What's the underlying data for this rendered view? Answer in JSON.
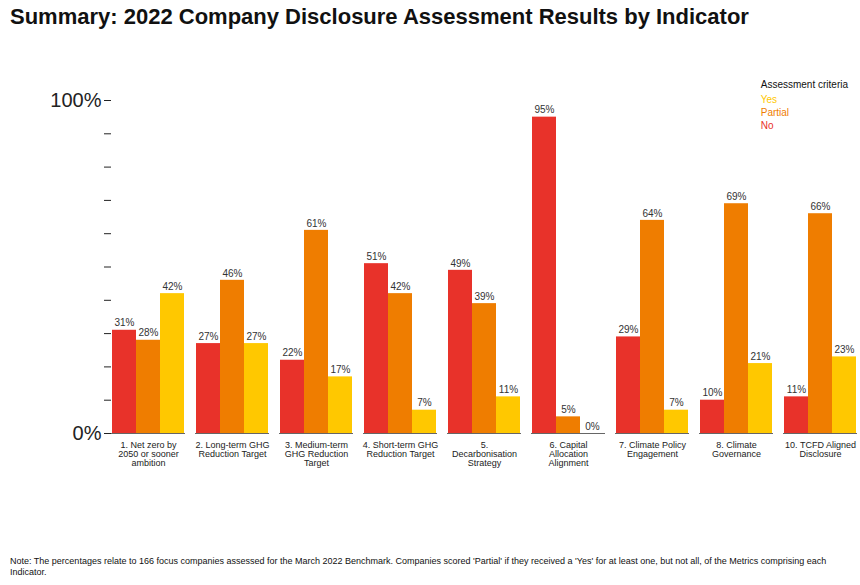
{
  "chart_data": {
    "type": "bar",
    "title": "Summary: 2022 Company Disclosure Assessment Results by Indicator",
    "note": "Note: The percentages relate to 166 focus companies assessed for the March 2022 Benchmark. Companies scored 'Partial' if they received a 'Yes' for at least one, but not all, of the Metrics comprising each Indicator.",
    "legend_title": "Assessment criteria",
    "legend": "top-right",
    "categories": [
      "1. Net zero by 2050 or sooner ambition",
      "2. Long-term GHG Reduction Target",
      "3. Medium-term GHG Reduction Target",
      "4. Short-term GHG Reduction Target",
      "5. Decarbonisation Strategy",
      "6. Capital Allocation Alignment",
      "7. Climate Policy Engagement",
      "8. Climate Governance",
      "10. TCFD Aligned Disclosure"
    ],
    "series": [
      {
        "name": "No",
        "color": "#e8322a",
        "values": [
          31,
          27,
          22,
          51,
          49,
          95,
          29,
          10,
          11
        ],
        "value_labels": [
          "31%",
          "27%",
          "22%",
          "51%",
          "49%",
          "95%",
          "29%",
          "10%",
          "11%"
        ]
      },
      {
        "name": "Partial",
        "color": "#ef7d00",
        "values": [
          28,
          46,
          61,
          42,
          39,
          5,
          64,
          69,
          66
        ],
        "value_labels": [
          "28%",
          "46%",
          "61%",
          "42%",
          "39%",
          "5%",
          "64%",
          "69%",
          "66%"
        ]
      },
      {
        "name": "Yes",
        "color": "#ffc800",
        "values": [
          42,
          27,
          17,
          7,
          11,
          0,
          7,
          21,
          23
        ],
        "value_labels": [
          "42%",
          "27%",
          "17%",
          "7%",
          "11%",
          "0%",
          "7%",
          "21%",
          "23%"
        ]
      }
    ],
    "ylim": [
      0,
      100
    ],
    "yticks": [
      {
        "value": 0,
        "label": "0%"
      },
      {
        "value": 10,
        "label": null
      },
      {
        "value": 20,
        "label": null
      },
      {
        "value": 30,
        "label": null
      },
      {
        "value": 40,
        "label": null
      },
      {
        "value": 50,
        "label": null
      },
      {
        "value": 60,
        "label": null
      },
      {
        "value": 70,
        "label": null
      },
      {
        "value": 80,
        "label": null
      },
      {
        "value": 90,
        "label": null
      },
      {
        "value": 100,
        "label": "100%"
      }
    ],
    "grid": false,
    "data_labels": true
  }
}
